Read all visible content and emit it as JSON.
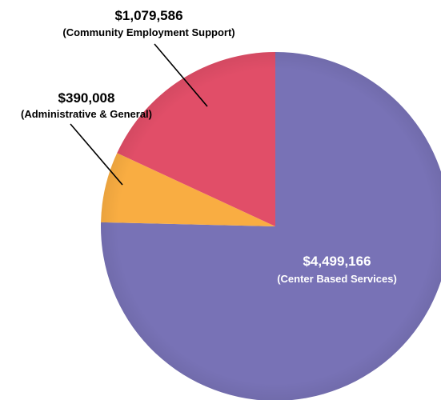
{
  "chart_data": {
    "type": "pie",
    "title": "",
    "start_angle_deg": 0,
    "direction": "clockwise",
    "slices": [
      {
        "label": "Center Based Services",
        "value": 4499166,
        "amount_text": "$4,499,166",
        "desc_text": "(Center Based Services)",
        "color": "#7872b6",
        "label_color": "#ffffff"
      },
      {
        "label": "Administrative & General",
        "value": 390008,
        "amount_text": "$390,008",
        "desc_text": "(Administrative & General)",
        "color": "#f9ad42",
        "label_color": "#000000"
      },
      {
        "label": "Community Employment Support",
        "value": 1079586,
        "amount_text": "$1,079,586",
        "desc_text": "(Community Employment Support)",
        "color": "#e14e68",
        "label_color": "#000000"
      }
    ]
  }
}
